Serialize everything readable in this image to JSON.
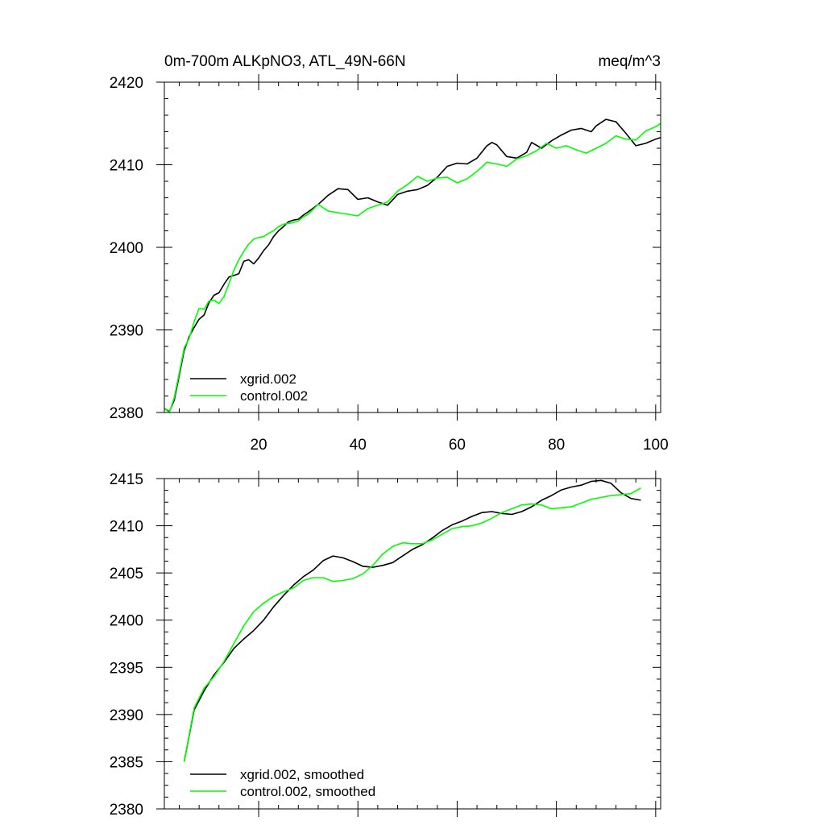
{
  "chart_data": [
    {
      "type": "line",
      "title": "0m-700m ALKpNO3, ATL_49N-66N",
      "units": "meq/m^3",
      "xlim": [
        1,
        101
      ],
      "ylim": [
        2380,
        2420
      ],
      "xticks": [
        20,
        40,
        60,
        80,
        100
      ],
      "yticks": [
        2380,
        2390,
        2400,
        2410,
        2420
      ],
      "x_tick_labels_shown": true,
      "legend_position": "bottom-left",
      "series": [
        {
          "name": "xgrid.002",
          "color": "#000000",
          "x": [
            1,
            2,
            3,
            4,
            5,
            6,
            7,
            8,
            9,
            10,
            11,
            12,
            13,
            14,
            15,
            16,
            17,
            18,
            19,
            20,
            21,
            22,
            23,
            24,
            25,
            26,
            27,
            28,
            29,
            30,
            32,
            34,
            36,
            38,
            40,
            42,
            44,
            46,
            48,
            50,
            52,
            54,
            56,
            58,
            60,
            62,
            64,
            66,
            67,
            68,
            70,
            72,
            74,
            75,
            77,
            79,
            81,
            83,
            85,
            87,
            88,
            90,
            92,
            94,
            96,
            98,
            100,
            101
          ],
          "values": [
            2380.5,
            2380.1,
            2381.5,
            2384.5,
            2387.5,
            2389.2,
            2390.3,
            2391.3,
            2391.8,
            2393.3,
            2394.2,
            2394.5,
            2395.5,
            2396.4,
            2396.6,
            2396.8,
            2398.3,
            2398.5,
            2398.0,
            2398.7,
            2399.6,
            2400.3,
            2401.3,
            2402.0,
            2402.5,
            2403.1,
            2403.3,
            2403.4,
            2403.9,
            2404.3,
            2405.2,
            2406.3,
            2407.1,
            2407.0,
            2405.8,
            2406.0,
            2405.5,
            2405.1,
            2406.4,
            2406.8,
            2407.0,
            2407.5,
            2408.5,
            2409.8,
            2410.2,
            2410.1,
            2410.8,
            2412.3,
            2412.7,
            2412.4,
            2411.0,
            2410.8,
            2411.5,
            2412.7,
            2412.0,
            2412.9,
            2413.6,
            2414.2,
            2414.4,
            2414.0,
            2414.7,
            2415.5,
            2415.2,
            2413.8,
            2412.3,
            2412.6,
            2413.1,
            2413.3
          ]
        },
        {
          "name": "control.002",
          "color": "#00ff00",
          "x": [
            1,
            2,
            3,
            4,
            5,
            6,
            7,
            8,
            9,
            10,
            11,
            12,
            13,
            14,
            15,
            16,
            17,
            18,
            19,
            20,
            21,
            22,
            23,
            24,
            25,
            26,
            27,
            28,
            29,
            30,
            32,
            34,
            36,
            38,
            40,
            42,
            44,
            46,
            48,
            50,
            52,
            54,
            56,
            58,
            60,
            62,
            64,
            66,
            68,
            70,
            72,
            74,
            76,
            78,
            80,
            82,
            84,
            86,
            88,
            90,
            92,
            94,
            96,
            98,
            100,
            101
          ],
          "values": [
            2380.5,
            2380.0,
            2381.8,
            2384.8,
            2387.8,
            2389.0,
            2391.0,
            2392.6,
            2392.5,
            2393.5,
            2393.6,
            2393.2,
            2394.0,
            2395.6,
            2397.2,
            2398.5,
            2399.5,
            2400.4,
            2401.0,
            2401.2,
            2401.3,
            2401.7,
            2402.0,
            2402.5,
            2402.8,
            2402.9,
            2403.0,
            2403.2,
            2403.7,
            2404.0,
            2405.2,
            2404.4,
            2404.2,
            2404.0,
            2403.8,
            2404.7,
            2405.1,
            2405.5,
            2406.8,
            2407.6,
            2408.6,
            2408.0,
            2408.4,
            2408.5,
            2407.8,
            2408.3,
            2409.2,
            2410.3,
            2410.1,
            2409.8,
            2410.7,
            2411.1,
            2411.7,
            2412.6,
            2412.0,
            2412.3,
            2411.8,
            2411.4,
            2412.0,
            2412.6,
            2413.5,
            2413.1,
            2413.0,
            2414.1,
            2414.6,
            2415.0
          ]
        }
      ]
    },
    {
      "type": "line",
      "title": "",
      "units": "",
      "xlim": [
        1,
        101
      ],
      "ylim": [
        2380,
        2415
      ],
      "xticks": [
        20,
        40,
        60,
        80,
        100
      ],
      "yticks": [
        2380,
        2385,
        2390,
        2395,
        2400,
        2405,
        2410,
        2415
      ],
      "x_tick_labels_shown": false,
      "legend_position": "bottom-left",
      "series": [
        {
          "name": "xgrid.002, smoothed",
          "color": "#000000",
          "x": [
            5,
            7,
            9,
            11,
            13,
            15,
            17,
            19,
            21,
            23,
            25,
            27,
            29,
            31,
            33,
            35,
            37,
            39,
            41,
            43,
            45,
            47,
            49,
            51,
            53,
            55,
            57,
            59,
            61,
            63,
            65,
            67,
            69,
            71,
            73,
            75,
            77,
            79,
            81,
            83,
            85,
            87,
            89,
            91,
            93,
            95,
            97
          ],
          "values": [
            2385.0,
            2390.5,
            2392.5,
            2394.2,
            2395.5,
            2397.0,
            2398.0,
            2398.9,
            2400.0,
            2401.4,
            2402.6,
            2403.7,
            2404.6,
            2405.3,
            2406.3,
            2406.8,
            2406.6,
            2406.2,
            2405.7,
            2405.6,
            2405.8,
            2406.1,
            2406.8,
            2407.5,
            2408.0,
            2408.7,
            2409.5,
            2410.1,
            2410.5,
            2411.0,
            2411.4,
            2411.5,
            2411.3,
            2411.2,
            2411.5,
            2412.0,
            2412.7,
            2413.2,
            2413.8,
            2414.1,
            2414.3,
            2414.7,
            2414.8,
            2414.5,
            2413.5,
            2412.9,
            2412.7
          ]
        },
        {
          "name": "control.002, smoothed",
          "color": "#00ff00",
          "x": [
            5,
            7,
            9,
            11,
            13,
            15,
            17,
            19,
            21,
            23,
            25,
            27,
            29,
            31,
            33,
            35,
            37,
            39,
            41,
            43,
            45,
            47,
            49,
            51,
            53,
            55,
            57,
            59,
            61,
            63,
            65,
            67,
            69,
            71,
            73,
            75,
            77,
            79,
            81,
            83,
            85,
            87,
            89,
            91,
            93,
            95,
            97
          ],
          "values": [
            2385.0,
            2390.7,
            2392.8,
            2394.0,
            2395.6,
            2397.5,
            2399.4,
            2400.9,
            2401.8,
            2402.5,
            2403.0,
            2403.4,
            2404.2,
            2404.5,
            2404.5,
            2404.1,
            2404.2,
            2404.4,
            2404.9,
            2405.8,
            2407.0,
            2407.8,
            2408.2,
            2408.1,
            2408.1,
            2408.5,
            2409.1,
            2409.7,
            2409.9,
            2410.0,
            2410.3,
            2410.8,
            2411.4,
            2411.8,
            2412.2,
            2412.3,
            2412.2,
            2411.8,
            2411.9,
            2412.0,
            2412.4,
            2412.8,
            2413.0,
            2413.2,
            2413.3,
            2413.4,
            2414.0
          ]
        }
      ]
    }
  ]
}
